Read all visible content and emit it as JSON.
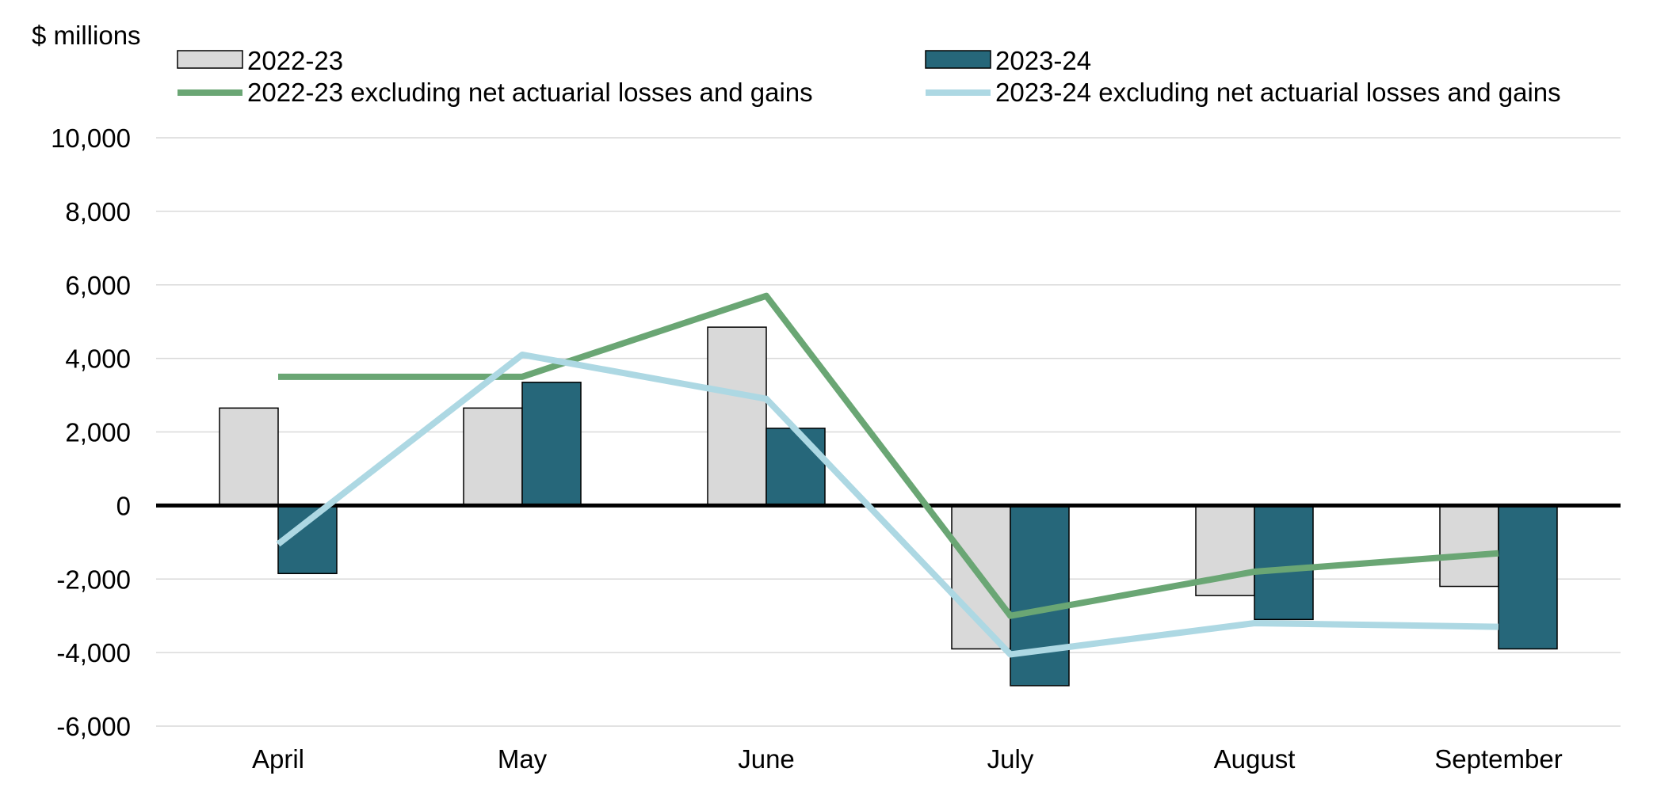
{
  "chart_data": {
    "type": "bar",
    "unit_label": "$ millions",
    "categories": [
      "April",
      "May",
      "June",
      "July",
      "August",
      "September"
    ],
    "series": [
      {
        "name": "2022-23",
        "kind": "bar",
        "color": "#D9D9D9",
        "stroke": "#000000",
        "values": [
          2650,
          2650,
          4850,
          -3900,
          -2450,
          -2200
        ]
      },
      {
        "name": "2023-24",
        "kind": "bar",
        "color": "#26677A",
        "stroke": "#000000",
        "values": [
          -1850,
          3350,
          2100,
          -4900,
          -3100,
          -3900
        ]
      },
      {
        "name": "2022-23 excluding net actuarial losses and gains",
        "kind": "line",
        "color": "#6AA674",
        "values": [
          3500,
          3500,
          5700,
          -3000,
          -1800,
          -1300
        ]
      },
      {
        "name": "2023-24 excluding net actuarial losses and gains",
        "kind": "line",
        "color": "#ADD8E3",
        "values": [
          -1050,
          4100,
          2900,
          -4050,
          -3200,
          -3300
        ]
      }
    ],
    "ylim": [
      -6000,
      10000
    ],
    "yticks": [
      10000,
      8000,
      6000,
      4000,
      2000,
      0,
      -2000,
      -4000,
      -6000
    ],
    "ytick_labels": [
      "10,000",
      "8,000",
      "6,000",
      "4,000",
      "2,000",
      "0",
      "-2,000",
      "-4,000",
      "-6,000"
    ],
    "grid": true,
    "legend_position": "top"
  }
}
